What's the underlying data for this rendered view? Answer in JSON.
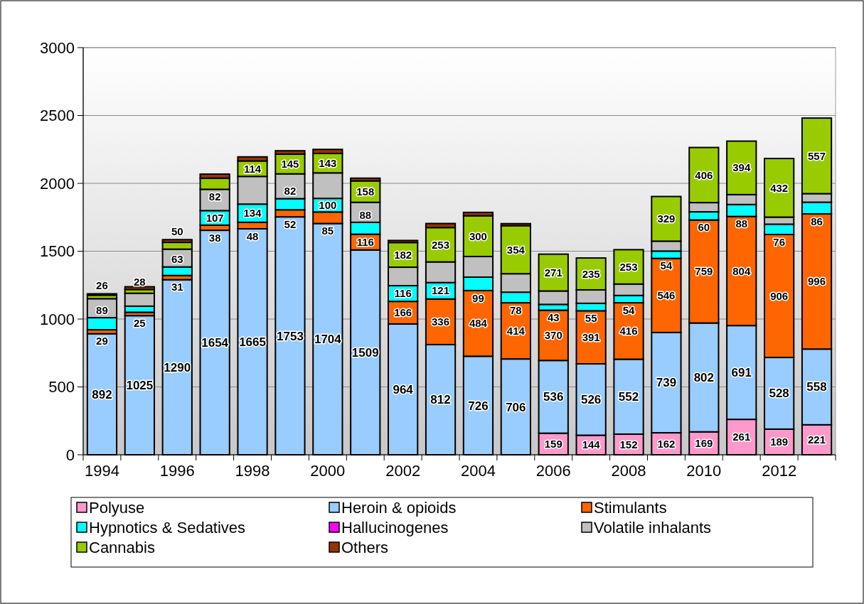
{
  "chart_data": {
    "type": "bar",
    "stacked": true,
    "categories": [
      "1994",
      null,
      "1996",
      null,
      "1998",
      null,
      "2000",
      null,
      "2002",
      null,
      "2004",
      null,
      "2006",
      null,
      "2008",
      null,
      "2010",
      null,
      "2012",
      null
    ],
    "ylim": [
      0,
      3000
    ],
    "yticks": [
      0,
      500,
      1000,
      1500,
      2000,
      2500,
      3000
    ],
    "grid": "y",
    "legend": "bottom",
    "series": [
      {
        "name": "Polyuse",
        "color": "#ff99cc",
        "values": [
          null,
          null,
          null,
          null,
          null,
          null,
          null,
          null,
          null,
          null,
          null,
          null,
          159,
          144,
          152,
          162,
          169,
          261,
          189,
          221
        ],
        "value_labels": [
          null,
          null,
          null,
          null,
          null,
          null,
          null,
          null,
          null,
          null,
          null,
          null,
          "159",
          "144",
          "152",
          "162",
          "169",
          "261",
          "189",
          "221"
        ]
      },
      {
        "name": "Heroin & opioids",
        "color": "#99ccff",
        "values": [
          892,
          1025,
          1290,
          1654,
          1665,
          1753,
          1704,
          1509,
          964,
          812,
          726,
          706,
          536,
          526,
          552,
          739,
          802,
          691,
          528,
          558
        ],
        "value_labels": [
          "892",
          "1025",
          "1290",
          "1654",
          "1665",
          "1753",
          "1704",
          "1509",
          "964",
          "812",
          "726",
          "706",
          "536",
          "526",
          "552",
          "739",
          "802",
          "691",
          "528",
          "558"
        ]
      },
      {
        "name": "Stimulants",
        "color": "#ff6600",
        "values": [
          29,
          25,
          31,
          38,
          48,
          52,
          85,
          116,
          166,
          336,
          484,
          414,
          370,
          391,
          416,
          546,
          759,
          804,
          906,
          996
        ],
        "value_labels": [
          "29",
          "25",
          "31",
          "38",
          "48",
          "52",
          "85",
          "116",
          "166",
          "336",
          "484",
          "414",
          "370",
          "391",
          "416",
          "546",
          "759",
          "804",
          "906",
          "996"
        ]
      },
      {
        "name": "Hypnotics & Sedatives",
        "color": "#00ffff",
        "values": [
          89,
          45,
          63,
          107,
          134,
          82,
          100,
          88,
          116,
          121,
          99,
          78,
          43,
          55,
          54,
          54,
          60,
          88,
          76,
          86
        ],
        "value_labels": [
          "89",
          null,
          "63",
          "107",
          "134",
          "82",
          "100",
          "88",
          "116",
          "121",
          "99",
          "78",
          "43",
          "55",
          "54",
          "54",
          "60",
          "88",
          "76",
          "86"
        ]
      },
      {
        "name": "Hallucinogenes",
        "color": "#ff00ff",
        "values": [
          null,
          null,
          null,
          null,
          null,
          null,
          null,
          null,
          null,
          null,
          null,
          null,
          null,
          null,
          null,
          null,
          null,
          null,
          null,
          null
        ]
      },
      {
        "name": "Volatile inhalants",
        "color": "#c0c0c0",
        "values": [
          140,
          95,
          131,
          157,
          204,
          183,
          188,
          147,
          136,
          152,
          152,
          136,
          99,
          99,
          84,
          73,
          68,
          73,
          52,
          63
        ]
      },
      {
        "name": "Cannabis",
        "color": "#99cc00",
        "values": [
          26,
          28,
          50,
          82,
          114,
          145,
          143,
          158,
          182,
          253,
          300,
          354,
          271,
          235,
          253,
          329,
          406,
          394,
          432,
          557
        ],
        "value_labels": [
          "26",
          "28",
          "50",
          "82",
          "114",
          "145",
          "143",
          "158",
          "182",
          "253",
          "300",
          "354",
          "271",
          "235",
          "253",
          "329",
          "406",
          "394",
          "432",
          "557"
        ]
      },
      {
        "name": "Others",
        "color": "#993300",
        "values": [
          10,
          20,
          20,
          30,
          30,
          25,
          30,
          20,
          15,
          30,
          25,
          15,
          null,
          null,
          null,
          null,
          null,
          null,
          null,
          null
        ]
      }
    ]
  }
}
